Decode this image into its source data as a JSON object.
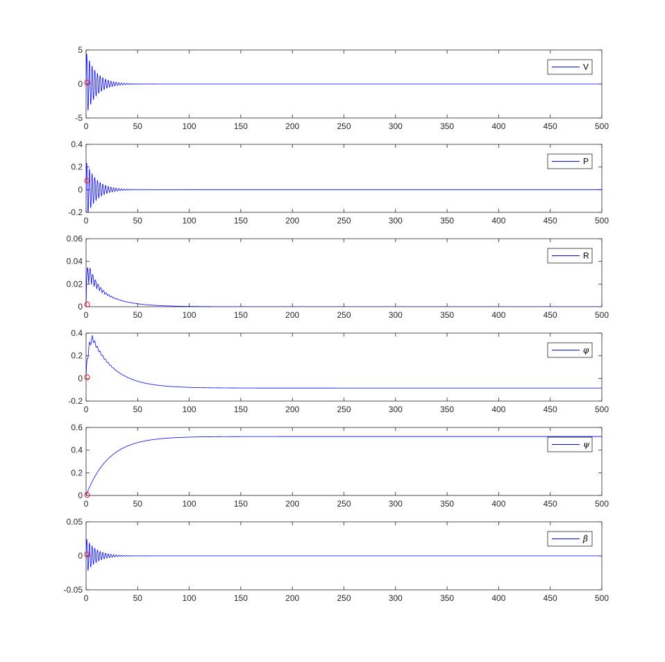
{
  "chart_data": [
    {
      "type": "line",
      "legend": "V",
      "legend_style": "latin",
      "xlim": [
        0,
        500
      ],
      "ylim": [
        -5,
        5
      ],
      "xticks": [
        0,
        50,
        100,
        150,
        200,
        250,
        300,
        350,
        400,
        450,
        500
      ],
      "yticks": [
        -5,
        0,
        5
      ],
      "ytick_labels": [
        "-5",
        "0",
        "5"
      ],
      "legend_placement": "top-right",
      "grid": false,
      "series_color": "#0000ff",
      "marker_color": "#ff0000",
      "initial_point": [
        1,
        0.2
      ],
      "response": {
        "kind": "oscillation",
        "offset": 0,
        "amplitude": 4.7,
        "decay": 10,
        "period": 2.6
      }
    },
    {
      "type": "line",
      "legend": "P",
      "legend_style": "latin",
      "xlim": [
        0,
        500
      ],
      "ylim": [
        -0.2,
        0.4
      ],
      "xticks": [
        0,
        50,
        100,
        150,
        200,
        250,
        300,
        350,
        400,
        450,
        500
      ],
      "yticks": [
        -0.2,
        0,
        0.2,
        0.4
      ],
      "ytick_labels": [
        "-0.2",
        "0",
        "0.2",
        "0.4"
      ],
      "legend_placement": "top-right",
      "grid": false,
      "series_color": "#0000ff",
      "marker_color": "#ff0000",
      "initial_point": [
        1,
        0.08
      ],
      "response": {
        "kind": "oscillation",
        "offset": 0,
        "amplitude": 0.25,
        "decay": 10,
        "period": 2.6
      }
    },
    {
      "type": "line",
      "legend": "R",
      "legend_style": "latin",
      "xlim": [
        0,
        500
      ],
      "ylim": [
        0,
        0.06
      ],
      "xticks": [
        0,
        50,
        100,
        150,
        200,
        250,
        300,
        350,
        400,
        450,
        500
      ],
      "yticks": [
        0,
        0.02,
        0.04,
        0.06
      ],
      "ytick_labels": [
        "0",
        "0.02",
        "0.04",
        "0.06"
      ],
      "legend_placement": "top-right",
      "grid": false,
      "series_color": "#0000ff",
      "marker_color": "#ff0000",
      "initial_point": [
        1,
        0.002
      ],
      "response": {
        "kind": "decay_bump",
        "base": 0.025,
        "decay": 22,
        "ripple": 0.022,
        "ripple_decay": 8,
        "period": 2.6
      }
    },
    {
      "type": "line",
      "legend": "φ",
      "legend_style": "greek",
      "xlim": [
        0,
        500
      ],
      "ylim": [
        -0.2,
        0.4
      ],
      "xticks": [
        0,
        50,
        100,
        150,
        200,
        250,
        300,
        350,
        400,
        450,
        500
      ],
      "yticks": [
        -0.2,
        0,
        0.2,
        0.4
      ],
      "ytick_labels": [
        "-0.2",
        "0",
        "0.2",
        "0.4"
      ],
      "legend_placement": "top-right",
      "grid": false,
      "series_color": "#0000ff",
      "marker_color": "#ff0000",
      "initial_point": [
        1,
        0.01
      ],
      "response": {
        "kind": "overshoot_settle",
        "final": -0.085,
        "peak": 0.36,
        "peak_time": 6,
        "decay": 22,
        "ripple": 0.04,
        "ripple_decay": 10,
        "period": 2.6
      }
    },
    {
      "type": "line",
      "legend": "ψ",
      "legend_style": "greek",
      "xlim": [
        0,
        500
      ],
      "ylim": [
        0,
        0.6
      ],
      "xticks": [
        0,
        50,
        100,
        150,
        200,
        250,
        300,
        350,
        400,
        450,
        500
      ],
      "yticks": [
        0,
        0.2,
        0.4,
        0.6
      ],
      "ytick_labels": [
        "0",
        "0.2",
        "0.4",
        "0.6"
      ],
      "legend_placement": "top-right",
      "grid": false,
      "series_color": "#0000ff",
      "marker_color": "#ff0000",
      "initial_point": [
        1,
        0.005
      ],
      "response": {
        "kind": "rise",
        "final": 0.52,
        "tau": 22
      }
    },
    {
      "type": "line",
      "legend": "β",
      "legend_style": "greek",
      "xlim": [
        0,
        500
      ],
      "ylim": [
        -0.05,
        0.05
      ],
      "xticks": [
        0,
        50,
        100,
        150,
        200,
        250,
        300,
        350,
        400,
        450,
        500
      ],
      "yticks": [
        -0.05,
        0,
        0.05
      ],
      "ytick_labels": [
        "-0.05",
        "0",
        "0.05"
      ],
      "legend_placement": "top-right",
      "grid": false,
      "series_color": "#0000ff",
      "marker_color": "#ff0000",
      "initial_point": [
        1,
        0.002
      ],
      "response": {
        "kind": "oscillation",
        "offset": 0,
        "amplitude": 0.026,
        "decay": 10,
        "period": 2.6
      }
    }
  ]
}
